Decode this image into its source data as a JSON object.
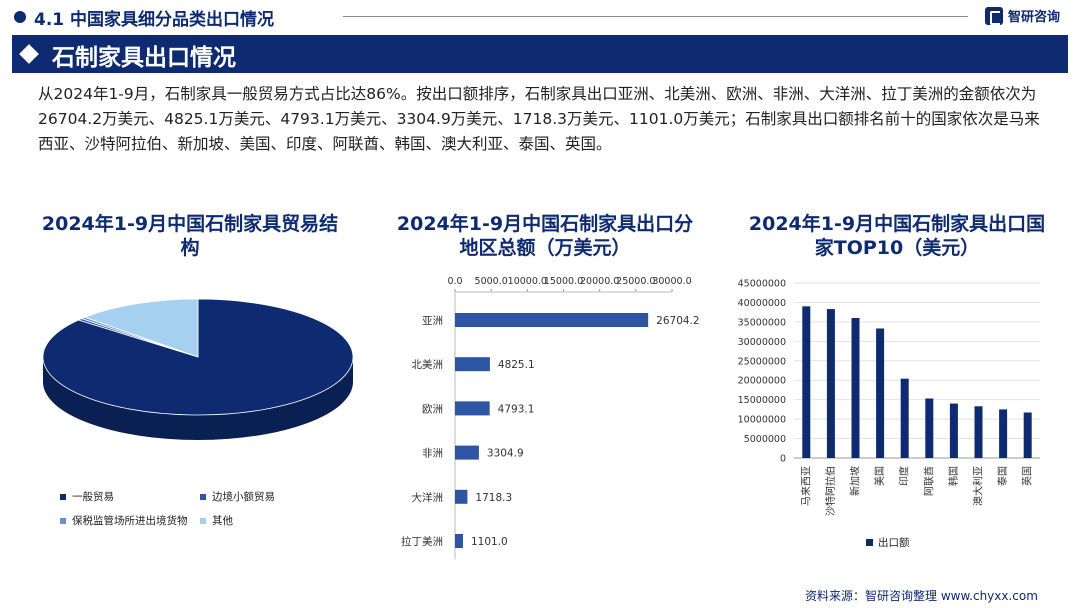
{
  "header": {
    "section_title": "4.1 中国家具细分品类出口情况",
    "brand": "智研咨询",
    "main_title": "石制家具出口情况"
  },
  "paragraph": "从2024年1-9月，石制家具一般贸易方式占比达86%。按出口额排序，石制家具出口亚洲、北美洲、欧洲、非洲、大洋洲、拉丁美洲的金额依次为26704.2万美元、4825.1万美元、4793.1万美元、3304.9万美元、1718.3万美元、1101.0万美元；石制家具出口额排名前十的国家依次是马来西亚、沙特阿拉伯、新加坡、美国、印度、阿联酋、韩国、澳大利亚、泰国、英国。",
  "source": "资料来源：智研咨询整理 www.chyxx.com",
  "colors": {
    "navy": "#0e2a70",
    "bar": "#2d55a3",
    "lightblue": "#a6d0ef"
  },
  "chart_data": [
    {
      "type": "pie",
      "title": "2024年1-9月中国石制家具贸易结构",
      "title_lines": [
        "2024年1-9月中国石制家具贸易结",
        "构"
      ],
      "categories": [
        "一般贸易",
        "边境小额贸易",
        "保税监管场所进出境货物",
        "其他"
      ],
      "values": [
        86,
        0.5,
        0.5,
        13
      ],
      "colors": [
        "#0e2a70",
        "#2d55a3",
        "#6c8fd0",
        "#a6d0ef"
      ],
      "style": "3d",
      "legend": "bottom"
    },
    {
      "type": "bar",
      "orientation": "horizontal",
      "title": "2024年1-9月中国石制家具出口分地区总额（万美元）",
      "title_lines": [
        "2024年1-9月中国石制家具出口分",
        "地区总额（万美元）"
      ],
      "categories": [
        "亚洲",
        "北美洲",
        "欧洲",
        "非洲",
        "大洋洲",
        "拉丁美洲"
      ],
      "values": [
        26704.2,
        4825.1,
        4793.1,
        3304.9,
        1718.3,
        1101.0
      ],
      "value_labels": [
        "26704.2",
        "4825.1",
        "4793.1",
        "3304.9",
        "1718.3",
        "1101.0"
      ],
      "xlim": [
        0,
        30000
      ],
      "xticks": [
        "0.0",
        "5000.0",
        "10000.0",
        "15000.0",
        "20000.0",
        "25000.0",
        "30000.0"
      ],
      "axis_position": "top",
      "grid": false
    },
    {
      "type": "bar",
      "title": "2024年1-9月中国石制家具出口国家TOP10（美元）",
      "title_lines": [
        "2024年1-9月中国石制家具出口国",
        "家TOP10（美元）"
      ],
      "categories": [
        "马来西亚",
        "沙特阿拉伯",
        "新加坡",
        "美国",
        "印度",
        "阿联酋",
        "韩国",
        "澳大利亚",
        "泰国",
        "英国"
      ],
      "series": [
        {
          "name": "出口额",
          "values": [
            39000000,
            38300000,
            36000000,
            33300000,
            20400000,
            15300000,
            14000000,
            13300000,
            12500000,
            11700000
          ]
        }
      ],
      "ylim": [
        0,
        45000000
      ],
      "yticks": [
        "0",
        "5000000",
        "10000000",
        "15000000",
        "20000000",
        "25000000",
        "30000000",
        "35000000",
        "40000000",
        "45000000"
      ],
      "grid": true,
      "legend": "bottom"
    }
  ]
}
